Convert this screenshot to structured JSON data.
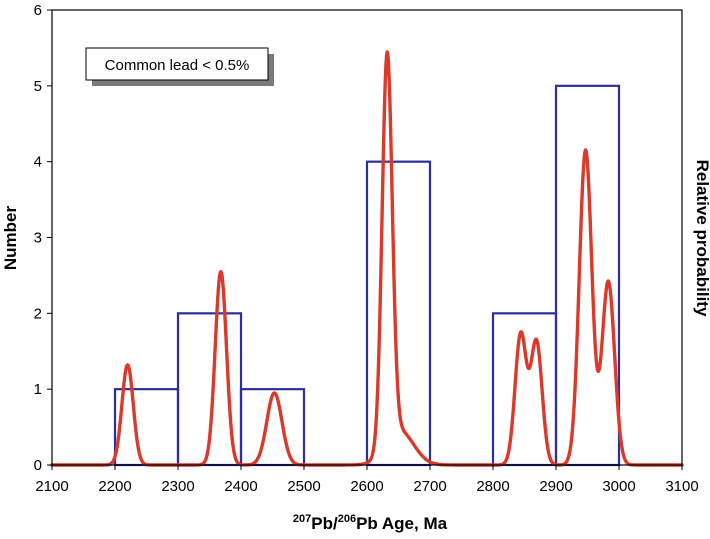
{
  "chart_data": {
    "type": "bar",
    "title": "",
    "xlabel": {
      "sup1": "207",
      "part1": "Pb/",
      "sup2": "206",
      "part2": "Pb Age, Ma"
    },
    "ylabel": "Number",
    "y2label": "Relative probability",
    "annotation": "Common lead < 0.5%",
    "xlim": [
      2100,
      3100
    ],
    "ylim": [
      0,
      6
    ],
    "x_ticks": [
      2100,
      2200,
      2300,
      2400,
      2500,
      2600,
      2700,
      2800,
      2900,
      3000,
      3100
    ],
    "y_ticks": [
      0,
      1,
      2,
      3,
      4,
      5,
      6
    ],
    "grid": false,
    "histogram": {
      "bin_width": 100,
      "color": "#2b2f9e",
      "bins": [
        {
          "x0": 2200,
          "x1": 2300,
          "count": 1
        },
        {
          "x0": 2300,
          "x1": 2400,
          "count": 2
        },
        {
          "x0": 2400,
          "x1": 2500,
          "count": 1
        },
        {
          "x0": 2600,
          "x1": 2700,
          "count": 4
        },
        {
          "x0": 2800,
          "x1": 2900,
          "count": 2
        },
        {
          "x0": 2900,
          "x1": 3000,
          "count": 5
        }
      ]
    },
    "probability_curve": {
      "color": "#d93a2b",
      "peaks": [
        {
          "age": 2220,
          "height": 1.32,
          "sigma": 9
        },
        {
          "age": 2368,
          "height": 2.55,
          "sigma": 9
        },
        {
          "age": 2453,
          "height": 0.95,
          "sigma": 12
        },
        {
          "age": 2632,
          "height": 5.15,
          "sigma": 8
        },
        {
          "age": 2652,
          "height": 0.45,
          "sigma": 22
        },
        {
          "age": 2844,
          "height": 1.72,
          "sigma": 9
        },
        {
          "age": 2869,
          "height": 1.62,
          "sigma": 9
        },
        {
          "age": 2947,
          "height": 4.15,
          "sigma": 10
        },
        {
          "age": 2983,
          "height": 2.42,
          "sigma": 10
        }
      ]
    }
  }
}
